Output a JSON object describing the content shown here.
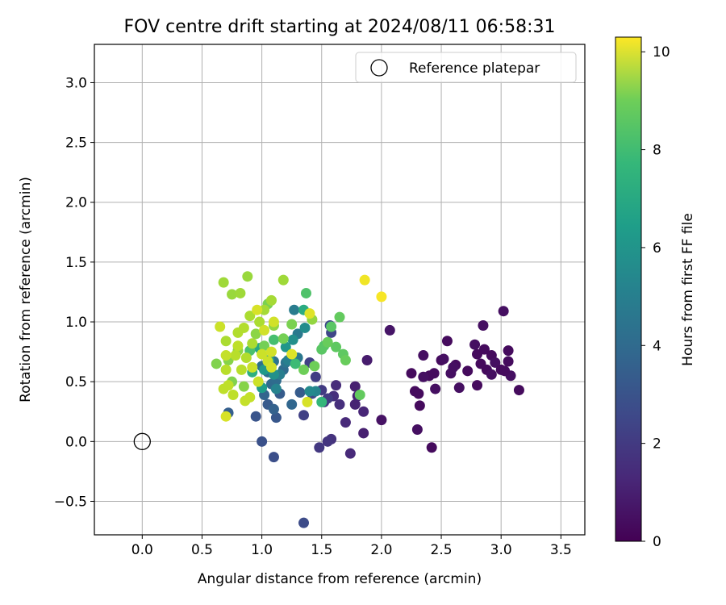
{
  "chart_data": {
    "type": "scatter",
    "title": "FOV centre drift starting at 2024/08/11 06:58:31",
    "xlabel": "Angular distance from reference (arcmin)",
    "ylabel": "Rotation from reference (arcmin)",
    "xlim": [
      -0.4,
      3.7
    ],
    "ylim": [
      -0.78,
      3.32
    ],
    "xticks": [
      "0.0",
      "0.5",
      "1.0",
      "1.5",
      "2.0",
      "2.5",
      "3.0",
      "3.5"
    ],
    "xtick_values": [
      0,
      0.5,
      1.0,
      1.5,
      2.0,
      2.5,
      3.0,
      3.5
    ],
    "yticks": [
      "−0.5",
      "0.0",
      "0.5",
      "1.0",
      "1.5",
      "2.0",
      "2.5",
      "3.0"
    ],
    "ytick_values": [
      -0.5,
      0,
      0.5,
      1.0,
      1.5,
      2.0,
      2.5,
      3.0
    ],
    "grid": true,
    "legend": {
      "placement": "top-right",
      "label": "Reference platepar"
    },
    "reference_point": {
      "x": 0,
      "y": 0
    },
    "colorbar": {
      "label": "Hours from first FF file",
      "colormap": "viridis",
      "range": [
        0,
        10.3
      ],
      "ticks": [
        "0",
        "2",
        "4",
        "6",
        "8",
        "10"
      ],
      "tick_values": [
        0,
        2,
        4,
        6,
        8,
        10
      ]
    },
    "series": [
      {
        "points": [
          [
            2.25,
            0.57,
            0.3
          ],
          [
            2.32,
            0.3,
            0.3
          ],
          [
            2.35,
            0.72,
            0.4
          ],
          [
            2.4,
            0.55,
            0.3
          ],
          [
            2.45,
            0.44,
            0.4
          ],
          [
            2.5,
            0.68,
            0.3
          ],
          [
            2.55,
            0.84,
            0.3
          ],
          [
            2.58,
            0.57,
            0.4
          ],
          [
            2.62,
            0.64,
            0.3
          ],
          [
            2.65,
            0.45,
            0.4
          ],
          [
            2.72,
            0.59,
            0.3
          ],
          [
            2.78,
            0.81,
            0.4
          ],
          [
            2.8,
            0.73,
            0.3
          ],
          [
            2.85,
            0.97,
            0.4
          ],
          [
            2.88,
            0.6,
            0.3
          ],
          [
            2.92,
            0.72,
            0.3
          ],
          [
            2.95,
            0.66,
            0.4
          ],
          [
            3.0,
            0.6,
            0.3
          ],
          [
            3.02,
            1.09,
            0.4
          ],
          [
            3.06,
            0.76,
            0.3
          ],
          [
            3.08,
            0.55,
            0.4
          ],
          [
            3.15,
            0.43,
            0.3
          ],
          [
            2.8,
            0.47,
            0.3
          ],
          [
            2.3,
            0.1,
            0.4
          ],
          [
            2.42,
            -0.05,
            0.3
          ],
          [
            2.28,
            0.42,
            0.3
          ],
          [
            2.6,
            0.62,
            0.4
          ],
          [
            2.44,
            0.57,
            0.3
          ],
          [
            2.52,
            0.69,
            0.4
          ],
          [
            3.03,
            0.59,
            0.3
          ],
          [
            3.06,
            0.67,
            0.3
          ],
          [
            2.92,
            0.56,
            0.4
          ],
          [
            2.86,
            0.77,
            0.3
          ],
          [
            2.83,
            0.65,
            0.3
          ],
          [
            2.35,
            0.54,
            0.4
          ],
          [
            2.31,
            0.4,
            0.3
          ],
          [
            2.0,
            0.18,
            0.5
          ],
          [
            2.07,
            0.93,
            0.6
          ],
          [
            1.88,
            0.68,
            0.8
          ],
          [
            1.85,
            0.07,
            0.9
          ],
          [
            1.78,
            0.46,
            0.9
          ],
          [
            1.78,
            0.31,
            1.0
          ],
          [
            1.8,
            0.38,
            1.0
          ],
          [
            1.85,
            0.25,
            1.1
          ],
          [
            1.7,
            0.16,
            1.2
          ],
          [
            1.74,
            -0.1,
            1.2
          ],
          [
            1.62,
            0.47,
            1.3
          ],
          [
            1.65,
            0.31,
            1.4
          ],
          [
            1.6,
            0.38,
            1.4
          ],
          [
            1.58,
            0.02,
            1.5
          ],
          [
            1.55,
            0.0,
            1.6
          ],
          [
            1.52,
            0.33,
            1.6
          ],
          [
            1.48,
            -0.05,
            1.7
          ],
          [
            1.5,
            0.43,
            1.8
          ],
          [
            1.55,
            0.36,
            1.8
          ],
          [
            1.45,
            0.54,
            1.9
          ],
          [
            1.4,
            0.66,
            2.0
          ],
          [
            1.35,
            0.22,
            2.0
          ],
          [
            1.58,
            0.91,
            2.2
          ],
          [
            1.57,
            0.97,
            2.3
          ],
          [
            1.42,
            0.4,
            2.3
          ],
          [
            1.35,
            -0.68,
            2.4
          ],
          [
            1.1,
            -0.13,
            2.5
          ],
          [
            1.0,
            0.0,
            2.6
          ],
          [
            0.95,
            0.21,
            2.7
          ],
          [
            1.12,
            0.2,
            2.8
          ],
          [
            1.05,
            0.31,
            2.9
          ],
          [
            1.15,
            0.4,
            3.0
          ],
          [
            1.32,
            0.41,
            3.0
          ],
          [
            0.72,
            0.24,
            3.1
          ],
          [
            1.1,
            0.27,
            3.2
          ],
          [
            1.02,
            0.39,
            3.3
          ],
          [
            1.25,
            0.31,
            3.4
          ],
          [
            1.08,
            0.48,
            3.5
          ],
          [
            1.12,
            0.51,
            3.6
          ],
          [
            1.18,
            0.6,
            3.6
          ],
          [
            1.05,
            0.58,
            3.7
          ],
          [
            1.0,
            0.63,
            3.8
          ],
          [
            1.1,
            0.67,
            3.9
          ],
          [
            1.2,
            0.66,
            4.0
          ],
          [
            1.3,
            0.7,
            4.1
          ],
          [
            1.3,
            0.9,
            4.2
          ],
          [
            1.27,
            1.1,
            4.3
          ],
          [
            1.15,
            0.56,
            4.4
          ],
          [
            1.22,
            0.68,
            4.5
          ],
          [
            1.12,
            0.44,
            4.6
          ],
          [
            1.45,
            0.42,
            4.7
          ],
          [
            1.4,
            0.42,
            4.9
          ],
          [
            1.36,
            0.95,
            5.0
          ],
          [
            1.26,
            0.85,
            5.1
          ],
          [
            1.1,
            0.56,
            5.2
          ],
          [
            1.2,
            0.79,
            5.4
          ],
          [
            1.02,
            0.6,
            5.5
          ],
          [
            1.0,
            0.45,
            5.7
          ],
          [
            1.06,
            0.68,
            5.9
          ],
          [
            0.98,
            0.78,
            6.1
          ],
          [
            1.35,
            1.1,
            6.3
          ],
          [
            0.92,
            0.58,
            6.5
          ],
          [
            1.5,
            0.33,
            6.8
          ],
          [
            1.28,
            0.65,
            7.0
          ],
          [
            1.1,
            0.85,
            7.2
          ],
          [
            0.9,
            0.76,
            7.3
          ],
          [
            1.37,
            1.24,
            7.4
          ],
          [
            1.52,
            0.8,
            7.5
          ],
          [
            1.5,
            0.77,
            7.6
          ],
          [
            1.58,
            0.96,
            7.6
          ],
          [
            1.68,
            0.73,
            7.7
          ],
          [
            1.62,
            0.79,
            7.7
          ],
          [
            1.82,
            0.39,
            7.8
          ],
          [
            1.65,
            1.04,
            7.8
          ],
          [
            1.55,
            0.83,
            7.9
          ],
          [
            1.7,
            0.68,
            7.9
          ],
          [
            1.44,
            0.63,
            8.0
          ],
          [
            1.35,
            0.6,
            8.0
          ],
          [
            1.18,
            0.86,
            8.1
          ],
          [
            1.02,
            0.8,
            8.1
          ],
          [
            1.25,
            0.98,
            8.2
          ],
          [
            1.05,
            1.15,
            8.2
          ],
          [
            0.62,
            0.65,
            8.3
          ],
          [
            0.75,
            0.5,
            8.3
          ],
          [
            0.85,
            0.46,
            8.4
          ],
          [
            0.72,
            0.68,
            8.4
          ],
          [
            0.8,
            0.76,
            8.5
          ],
          [
            0.95,
            0.9,
            8.5
          ],
          [
            1.1,
            0.97,
            8.6
          ],
          [
            1.42,
            1.02,
            8.6
          ],
          [
            0.88,
            1.38,
            8.7
          ],
          [
            0.75,
            1.23,
            8.7
          ],
          [
            0.68,
            1.33,
            8.8
          ],
          [
            0.82,
            1.24,
            8.8
          ],
          [
            1.18,
            1.35,
            8.8
          ],
          [
            1.02,
            1.1,
            8.9
          ],
          [
            1.08,
            1.18,
            8.9
          ],
          [
            0.9,
            1.05,
            9.0
          ],
          [
            0.98,
            1.0,
            9.0
          ],
          [
            0.7,
            0.84,
            9.0
          ],
          [
            0.8,
            0.91,
            9.1
          ],
          [
            0.85,
            0.95,
            9.1
          ],
          [
            0.78,
            0.72,
            9.2
          ],
          [
            0.7,
            0.6,
            9.2
          ],
          [
            0.68,
            0.44,
            9.3
          ],
          [
            0.72,
            0.47,
            9.3
          ],
          [
            0.76,
            0.39,
            9.3
          ],
          [
            0.86,
            0.34,
            9.4
          ],
          [
            0.9,
            0.37,
            9.4
          ],
          [
            0.92,
            0.62,
            9.5
          ],
          [
            0.97,
            0.5,
            9.5
          ],
          [
            1.0,
            0.73,
            9.5
          ],
          [
            1.05,
            0.67,
            9.5
          ],
          [
            1.08,
            0.75,
            9.6
          ],
          [
            1.1,
            1.0,
            9.6
          ],
          [
            1.02,
            0.93,
            9.6
          ],
          [
            0.96,
            1.1,
            9.7
          ],
          [
            0.7,
            0.21,
            9.7
          ],
          [
            1.38,
            0.33,
            9.7
          ],
          [
            1.4,
            1.07,
            9.8
          ],
          [
            1.25,
            0.73,
            9.8
          ],
          [
            0.65,
            0.96,
            9.5
          ],
          [
            0.7,
            0.72,
            9.4
          ],
          [
            0.8,
            0.8,
            9.3
          ],
          [
            0.83,
            0.6,
            9.2
          ],
          [
            0.87,
            0.7,
            9.1
          ],
          [
            0.92,
            0.82,
            9.0
          ],
          [
            1.08,
            0.62,
            9.6
          ],
          [
            1.86,
            1.35,
            10.1
          ],
          [
            2.0,
            1.21,
            10.2
          ]
        ]
      }
    ]
  }
}
